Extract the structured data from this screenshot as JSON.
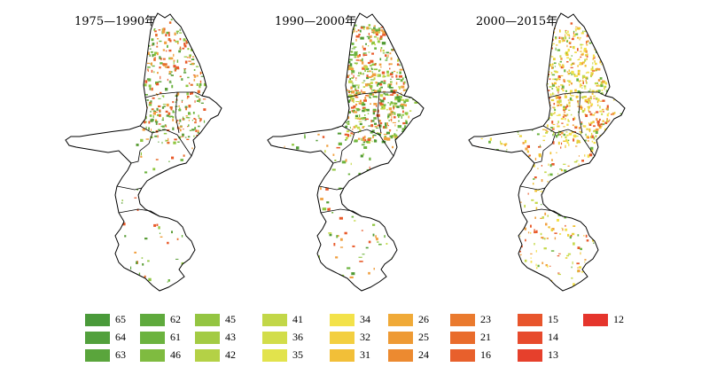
{
  "panels": [
    {
      "title": "1975—1990年",
      "palette": [
        "#5c9e3a",
        "#6cb33f",
        "#8fc63f",
        "#f0a040",
        "#e66b2a",
        "#e85a2a"
      ],
      "density": 1
    },
    {
      "title": "1990—2000年",
      "palette": [
        "#4f9a32",
        "#6cb33f",
        "#8fc63f",
        "#c5d94a",
        "#f0a040",
        "#e85a2a"
      ],
      "density": 2
    },
    {
      "title": "2000—2015年",
      "palette": [
        "#f3e04a",
        "#e9d23c",
        "#f0c030",
        "#c5d94a",
        "#f0a040",
        "#e85a2a",
        "#6cb33f"
      ],
      "density": 3
    }
  ],
  "legend": [
    {
      "label": "65",
      "color": "#4a9a3a"
    },
    {
      "label": "64",
      "color": "#52a03c"
    },
    {
      "label": "63",
      "color": "#5aa53c"
    },
    {
      "label": "62",
      "color": "#5faa3d"
    },
    {
      "label": "61",
      "color": "#6cb33f"
    },
    {
      "label": "46",
      "color": "#7fbb40"
    },
    {
      "label": "45",
      "color": "#94c542"
    },
    {
      "label": "43",
      "color": "#a3cb44"
    },
    {
      "label": "42",
      "color": "#b4d146"
    },
    {
      "label": "41",
      "color": "#c2d748"
    },
    {
      "label": "36",
      "color": "#d2dd4a"
    },
    {
      "label": "35",
      "color": "#e2e34c"
    },
    {
      "label": "34",
      "color": "#f3e24a"
    },
    {
      "label": "32",
      "color": "#f3cf40"
    },
    {
      "label": "31",
      "color": "#f2bf38"
    },
    {
      "label": "26",
      "color": "#f0aa38"
    },
    {
      "label": "25",
      "color": "#ee9a34"
    },
    {
      "label": "24",
      "color": "#ec8a30"
    },
    {
      "label": "23",
      "color": "#ea7a2e"
    },
    {
      "label": "21",
      "color": "#e96c2c"
    },
    {
      "label": "16",
      "color": "#e8602c"
    },
    {
      "label": "15",
      "color": "#e8552c"
    },
    {
      "label": "14",
      "color": "#e74a2c"
    },
    {
      "label": "13",
      "color": "#e6402c"
    },
    {
      "label": "12",
      "color": "#e5352c"
    }
  ]
}
